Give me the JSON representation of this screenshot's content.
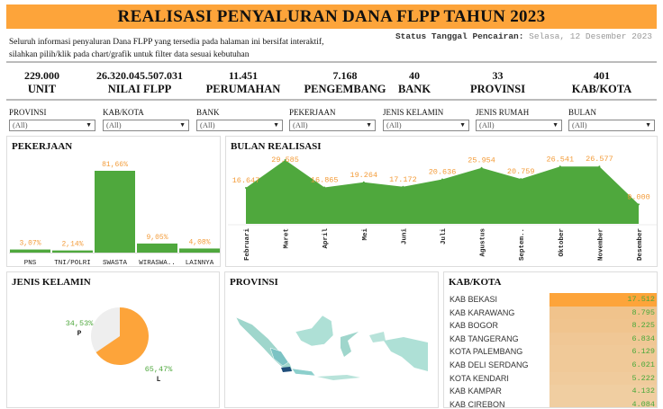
{
  "header": {
    "title": "REALISASI PENYALURAN DANA FLPP TAHUN 2023",
    "intro_line1": "Seluruh informasi penyaluran Dana FLPP yang tersedia pada halaman ini bersifat interaktif,",
    "intro_line2": "silahkan pilih/klik pada chart/grafik untuk filter data sesuai kebutuhan",
    "status_label": "Status Tanggal Pencairan:",
    "status_value": "Selasa, 12 Desember 2023"
  },
  "kpis": [
    {
      "value": "229.000",
      "label": "UNIT"
    },
    {
      "value": "26.320.045.507.031",
      "label": "NILAI FLPP"
    },
    {
      "value": "11.451",
      "label": "PERUMAHAN"
    },
    {
      "value": "7.168",
      "label": "PENGEMBANG"
    },
    {
      "value": "40",
      "label": "BANK"
    },
    {
      "value": "33",
      "label": "PROVINSI"
    },
    {
      "value": "401",
      "label": "KAB/KOTA"
    }
  ],
  "filters": [
    {
      "label": "PROVINSI",
      "value": "(All)"
    },
    {
      "label": "KAB/KOTA",
      "value": "(All)"
    },
    {
      "label": "BANK",
      "value": "(All)"
    },
    {
      "label": "PEKERJAAN",
      "value": "(All)"
    },
    {
      "label": "JENIS KELAMIN",
      "value": "(All)"
    },
    {
      "label": "JENIS RUMAH",
      "value": "(All)"
    },
    {
      "label": "BULAN",
      "value": "(All)"
    }
  ],
  "colors": {
    "accent": "#fda43a",
    "bar": "#4fa83d",
    "label": "#f39c3a",
    "pie_other": "#eeeeee",
    "map_base": "#aee0d6",
    "map_highlight": "#1f4e7a"
  },
  "chart_data": [
    {
      "type": "bar",
      "title": "PEKERJAAN",
      "categories": [
        "PNS",
        "TNI/POLRI",
        "SWASTA",
        "WIRASWA..",
        "LAINNYA"
      ],
      "values": [
        3.07,
        2.14,
        81.66,
        9.05,
        4.08
      ],
      "labels": [
        "3,07%",
        "2,14%",
        "81,66%",
        "9,05%",
        "4,08%"
      ],
      "ylim": [
        0,
        100
      ]
    },
    {
      "type": "area",
      "title": "BULAN REALISASI",
      "categories": [
        "Februari",
        "Maret",
        "April",
        "Mei",
        "Juni",
        "Juli",
        "Agustus",
        "Septem..",
        "Oktober",
        "November",
        "Desember"
      ],
      "values": [
        16647,
        29585,
        16865,
        19264,
        17172,
        20636,
        25954,
        20759,
        26541,
        26577,
        9000
      ],
      "labels": [
        "16.647",
        "29.585",
        "16.865",
        "19.264",
        "17.172",
        "20.636",
        "25.954",
        "20.759",
        "26.541",
        "26.577",
        "9.000"
      ]
    },
    {
      "type": "pie",
      "title": "JENIS KELAMIN",
      "slices": [
        {
          "name": "L",
          "value": 65.47,
          "label": "65,47%"
        },
        {
          "name": "P",
          "value": 34.53,
          "label": "34,53%"
        }
      ]
    },
    {
      "type": "table",
      "title": "KAB/KOTA",
      "rows": [
        {
          "name": "KAB BEKASI",
          "value": 17512,
          "label": "17.512"
        },
        {
          "name": "KAB KARAWANG",
          "value": 8795,
          "label": "8.795"
        },
        {
          "name": "KAB BOGOR",
          "value": 8225,
          "label": "8.225"
        },
        {
          "name": "KAB TANGERANG",
          "value": 6834,
          "label": "6.834"
        },
        {
          "name": "KOTA PALEMBANG",
          "value": 6129,
          "label": "6.129"
        },
        {
          "name": "KAB DELI SERDANG",
          "value": 6021,
          "label": "6.021"
        },
        {
          "name": "KOTA KENDARI",
          "value": 5222,
          "label": "5.222"
        },
        {
          "name": "KAB KAMPAR",
          "value": 4132,
          "label": "4.132"
        },
        {
          "name": "KAB CIREBON",
          "value": 4084,
          "label": "4.084"
        }
      ]
    }
  ],
  "map": {
    "title": "PROVINSI"
  }
}
